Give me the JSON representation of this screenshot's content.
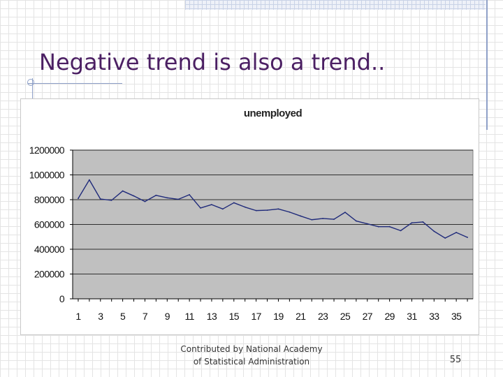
{
  "slide": {
    "title": "Negative trend is also a trend..",
    "footer_line1": "Contributed by National Academy",
    "footer_line2": "of Statistical Administration",
    "page_number": "55"
  },
  "chart_data": {
    "type": "line",
    "title": "unemployed",
    "xlabel": "",
    "ylabel": "",
    "x": [
      1,
      2,
      3,
      4,
      5,
      6,
      7,
      8,
      9,
      10,
      11,
      12,
      13,
      14,
      15,
      16,
      17,
      18,
      19,
      20,
      21,
      22,
      23,
      24,
      25,
      26,
      27,
      28,
      29,
      30,
      31,
      32,
      33,
      34,
      35,
      36
    ],
    "x_tick_labels": [
      "1",
      "3",
      "5",
      "7",
      "9",
      "11",
      "13",
      "15",
      "17",
      "19",
      "21",
      "23",
      "25",
      "27",
      "29",
      "31",
      "33",
      "35"
    ],
    "y_tick_labels": [
      "0",
      "200000",
      "400000",
      "600000",
      "800000",
      "1000000",
      "1200000"
    ],
    "ylim": [
      0,
      1200000
    ],
    "grid": true,
    "plot_background": "#c0c0c0",
    "line_color": "#1f2a7a",
    "series": [
      {
        "values": [
          810000,
          960000,
          805000,
          795000,
          870000,
          830000,
          785000,
          835000,
          815000,
          803000,
          840000,
          733000,
          760000,
          725000,
          775000,
          740000,
          712000,
          715000,
          725000,
          700000,
          668000,
          638000,
          648000,
          642000,
          698000,
          628000,
          605000,
          582000,
          582000,
          550000,
          613000,
          620000,
          545000,
          490000,
          535000,
          496000
        ]
      }
    ]
  }
}
